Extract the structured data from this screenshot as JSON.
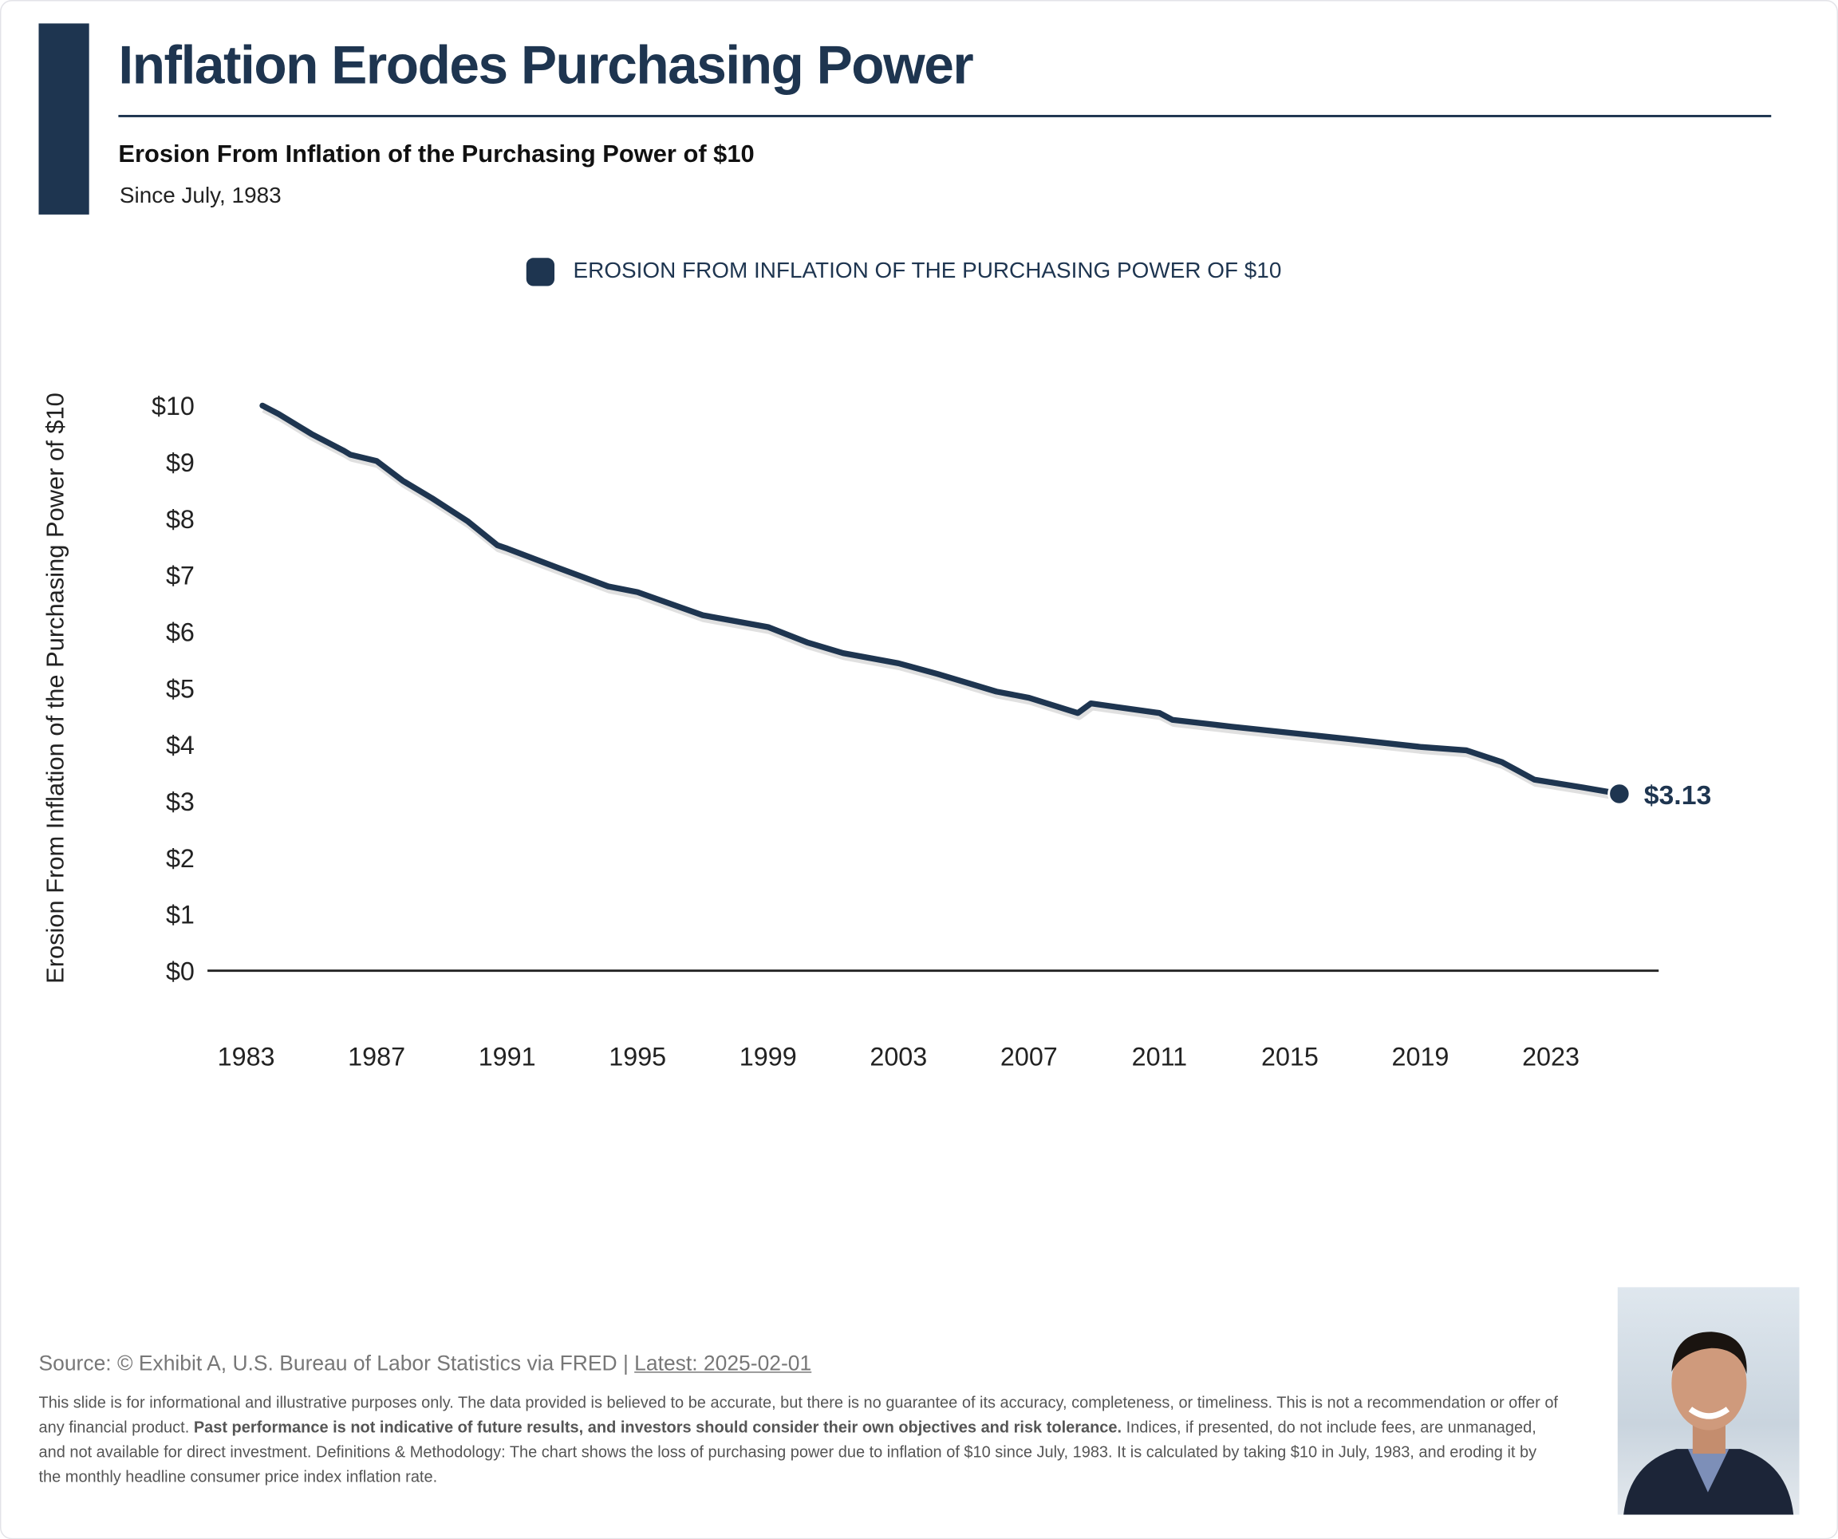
{
  "header": {
    "title": "Inflation Erodes Purchasing Power",
    "subtitle": "Erosion From Inflation of the Purchasing Power of $10",
    "since": "Since July, 1983"
  },
  "colors": {
    "accent": "#1e3550"
  },
  "chart_data": {
    "type": "line",
    "title": "Erosion From Inflation of the Purchasing Power of $10",
    "legend": [
      "EROSION FROM INFLATION OF THE PURCHASING POWER OF $10"
    ],
    "legend_position": "top-center",
    "ylabel": "Erosion From Inflation of the Purchasing Power of $10",
    "xlabel": "",
    "ylim": [
      0,
      10
    ],
    "xlim": [
      1983,
      2026
    ],
    "yticks": [
      "$0",
      "$1",
      "$2",
      "$3",
      "$4",
      "$5",
      "$6",
      "$7",
      "$8",
      "$9",
      "$10"
    ],
    "xticks": [
      "1983",
      "1987",
      "1991",
      "1995",
      "1999",
      "2003",
      "2007",
      "2011",
      "2015",
      "2019",
      "2023"
    ],
    "grid": false,
    "end_label": "$3.13",
    "series": [
      {
        "name": "EROSION FROM INFLATION OF THE PURCHASING POWER OF $10",
        "x": [
          1983.5,
          1984,
          1985,
          1986,
          1986.2,
          1987,
          1987.8,
          1988.7,
          1989.8,
          1990.7,
          1991,
          1992.6,
          1994.1,
          1995,
          1997,
          1999,
          2000.2,
          2001.3,
          2003,
          2004.2,
          2006,
          2007,
          2008.5,
          2008.9,
          2011,
          2011.4,
          2013.2,
          2015,
          2016.8,
          2019,
          2020.4,
          2021.5,
          2022.5,
          2024,
          2025.1
        ],
        "values": [
          10,
          9.85,
          9.5,
          9.2,
          9.13,
          9.02,
          8.67,
          8.36,
          7.95,
          7.53,
          7.47,
          7.12,
          6.8,
          6.7,
          6.29,
          6.08,
          5.81,
          5.62,
          5.44,
          5.25,
          4.94,
          4.83,
          4.56,
          4.73,
          4.56,
          4.44,
          4.32,
          4.21,
          4.1,
          3.96,
          3.9,
          3.69,
          3.38,
          3.24,
          3.13
        ]
      }
    ]
  },
  "footer": {
    "source": "Source: © Exhibit A, U.S. Bureau of Labor Statistics via FRED | ",
    "latest": "Latest: 2025-02-01",
    "disclaimer_1": "This slide is for informational and illustrative purposes only. The data provided is believed to be accurate, but there is no guarantee of its accuracy, completeness, or timeliness. This is not a recommendation or offer of any financial product. ",
    "disclaimer_bold": "Past performance is not indicative of future results, and investors should consider their own objectives and risk tolerance.",
    "disclaimer_2": " Indices, if presented, do not include fees, are unmanaged, and not available for direct investment. Definitions & Methodology: The chart shows the loss of purchasing power due to inflation of $10 since July, 1983. It is calculated by taking $10 in July, 1983, and eroding it by the monthly headline consumer price index inflation rate."
  }
}
